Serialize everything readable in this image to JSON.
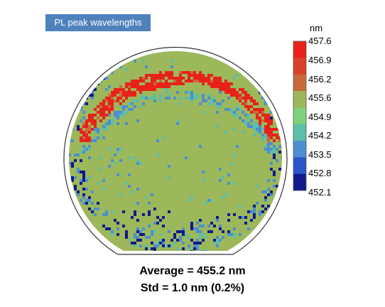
{
  "chart_data": {
    "type": "heatmap",
    "title": "PL peak wavelengths",
    "colorbar": {
      "unit": "nm",
      "ticks": [
        "457.6",
        "456.9",
        "456.2",
        "455.6",
        "454.9",
        "454.2",
        "453.5",
        "452.8",
        "452.1"
      ],
      "min": 452.1,
      "max": 457.6,
      "colors": [
        "#e8221a",
        "#d9402a",
        "#c86a3a",
        "#9cb85a",
        "#7ed07a",
        "#5cbfa8",
        "#4c8fd0",
        "#2a55c8",
        "#101a8a"
      ]
    },
    "colors": {
      "dominant": "#9cb85a",
      "high": "#e8221a",
      "low": "#101a8a",
      "mid_blue": "#4c8fd0",
      "cyan": "#5cbfa8"
    },
    "average_text": "Average = 455.2 nm",
    "std_text": "Std = 1.0 nm (0.2%)"
  }
}
